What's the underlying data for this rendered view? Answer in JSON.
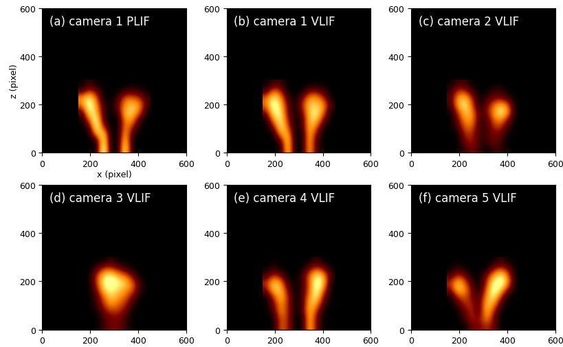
{
  "chart_data": [
    {
      "type": "heatmap",
      "title": "(a) camera 1 PLIF",
      "x_label": "x (pixel)",
      "y_label": "z (pixel)",
      "xlim": [
        0,
        600
      ],
      "ylim": [
        0,
        600
      ],
      "xticks": [
        0,
        200,
        400,
        600
      ],
      "yticks": [
        0,
        200,
        400,
        600
      ],
      "cells_x": [
        150,
        450
      ],
      "cells_z": [
        0,
        300
      ],
      "color_range": [
        0,
        9
      ],
      "cells": [
        [
          0,
          0,
          0,
          9,
          0,
          0,
          8,
          0,
          0,
          0
        ],
        [
          0,
          0,
          0,
          8,
          0,
          0,
          7,
          0,
          0,
          0
        ],
        [
          0,
          0,
          5,
          7,
          0,
          0,
          6,
          1,
          0,
          0
        ],
        [
          0,
          1,
          8,
          3,
          0,
          0,
          5,
          3,
          0,
          0
        ],
        [
          0,
          4,
          8,
          1,
          0,
          0,
          5,
          5,
          1,
          0
        ],
        [
          1,
          7,
          6,
          1,
          0,
          1,
          6,
          6,
          4,
          0
        ],
        [
          4,
          8,
          5,
          1,
          0,
          2,
          5,
          6,
          5,
          1
        ],
        [
          5,
          7,
          4,
          0,
          0,
          1,
          4,
          4,
          3,
          1
        ],
        [
          1,
          3,
          2,
          0,
          0,
          0,
          1,
          1,
          1,
          0
        ],
        [
          0,
          1,
          0,
          0,
          0,
          0,
          0,
          0,
          0,
          0
        ]
      ]
    },
    {
      "type": "heatmap",
      "title": "(b) camera 1 VLIF",
      "xlim": [
        0,
        600
      ],
      "ylim": [
        0,
        600
      ],
      "xticks": [
        0,
        200,
        400,
        600
      ],
      "yticks": [
        0,
        200,
        400,
        600
      ],
      "cells_x": [
        150,
        450
      ],
      "cells_z": [
        0,
        300
      ],
      "color_range": [
        0,
        9
      ],
      "cells": [
        [
          0,
          0,
          0,
          7,
          0,
          0,
          6,
          1,
          0,
          0
        ],
        [
          0,
          0,
          1,
          7,
          0,
          0,
          6,
          1,
          0,
          0
        ],
        [
          0,
          0,
          5,
          6,
          0,
          0,
          6,
          2,
          0,
          0
        ],
        [
          0,
          2,
          7,
          4,
          0,
          1,
          6,
          4,
          0,
          0
        ],
        [
          0,
          5,
          7,
          3,
          0,
          1,
          6,
          6,
          2,
          0
        ],
        [
          2,
          7,
          7,
          2,
          0,
          2,
          6,
          7,
          4,
          0
        ],
        [
          4,
          8,
          6,
          2,
          0,
          3,
          6,
          6,
          5,
          1
        ],
        [
          4,
          7,
          5,
          1,
          0,
          2,
          5,
          5,
          3,
          0
        ],
        [
          1,
          4,
          3,
          0,
          0,
          0,
          2,
          2,
          1,
          0
        ],
        [
          0,
          1,
          1,
          0,
          0,
          0,
          0,
          0,
          0,
          0
        ]
      ]
    },
    {
      "type": "heatmap",
      "title": "(c) camera 2 VLIF",
      "xlim": [
        0,
        600
      ],
      "ylim": [
        0,
        600
      ],
      "xticks": [
        0,
        200,
        400,
        600
      ],
      "yticks": [
        0,
        200,
        400,
        600
      ],
      "cells_x": [
        150,
        450
      ],
      "cells_z": [
        0,
        300
      ],
      "color_range": [
        0,
        9
      ],
      "cells": [
        [
          0,
          0,
          1,
          2,
          1,
          0,
          1,
          1,
          0,
          0
        ],
        [
          0,
          0,
          2,
          3,
          1,
          1,
          2,
          1,
          0,
          0
        ],
        [
          0,
          0,
          3,
          3,
          1,
          1,
          2,
          2,
          0,
          0
        ],
        [
          0,
          1,
          4,
          4,
          1,
          1,
          3,
          3,
          1,
          0
        ],
        [
          0,
          2,
          5,
          5,
          1,
          1,
          4,
          5,
          2,
          0
        ],
        [
          0,
          3,
          6,
          5,
          1,
          2,
          5,
          7,
          5,
          0
        ],
        [
          1,
          5,
          7,
          4,
          0,
          2,
          4,
          6,
          4,
          0
        ],
        [
          1,
          5,
          6,
          3,
          0,
          1,
          2,
          2,
          1,
          0
        ],
        [
          1,
          3,
          3,
          1,
          0,
          0,
          1,
          1,
          0,
          0
        ],
        [
          0,
          1,
          1,
          0,
          0,
          0,
          0,
          0,
          0,
          0
        ]
      ]
    },
    {
      "type": "heatmap",
      "title": "(d) camera 3 VLIF",
      "xlim": [
        0,
        600
      ],
      "ylim": [
        0,
        600
      ],
      "xticks": [
        0,
        200,
        400,
        600
      ],
      "yticks": [
        0,
        200,
        400,
        600
      ],
      "cells_x": [
        150,
        450
      ],
      "cells_z": [
        0,
        300
      ],
      "color_range": [
        0,
        9
      ],
      "cells": [
        [
          0,
          0,
          0,
          1,
          2,
          2,
          1,
          0,
          0,
          0
        ],
        [
          0,
          0,
          0,
          1,
          2,
          2,
          1,
          0,
          0,
          0
        ],
        [
          0,
          0,
          0,
          2,
          3,
          3,
          2,
          0,
          0,
          0
        ],
        [
          0,
          0,
          1,
          3,
          5,
          4,
          3,
          1,
          0,
          0
        ],
        [
          0,
          0,
          1,
          4,
          6,
          5,
          4,
          2,
          0,
          0
        ],
        [
          0,
          0,
          2,
          6,
          7,
          6,
          5,
          4,
          1,
          0
        ],
        [
          0,
          0,
          3,
          7,
          8,
          7,
          6,
          4,
          1,
          0
        ],
        [
          0,
          0,
          3,
          6,
          7,
          5,
          4,
          2,
          0,
          0
        ],
        [
          0,
          0,
          1,
          3,
          3,
          2,
          1,
          0,
          0,
          0
        ],
        [
          0,
          0,
          0,
          0,
          1,
          0,
          0,
          0,
          0,
          0
        ]
      ]
    },
    {
      "type": "heatmap",
      "title": "(e) camera 4 VLIF",
      "xlim": [
        0,
        600
      ],
      "ylim": [
        0,
        600
      ],
      "xticks": [
        0,
        200,
        400,
        600
      ],
      "yticks": [
        0,
        200,
        400,
        600
      ],
      "cells_x": [
        150,
        450
      ],
      "cells_z": [
        0,
        300
      ],
      "color_range": [
        0,
        9
      ],
      "cells": [
        [
          0,
          0,
          4,
          3,
          0,
          0,
          6,
          2,
          0,
          0
        ],
        [
          0,
          0,
          4,
          3,
          0,
          0,
          6,
          2,
          0,
          0
        ],
        [
          0,
          1,
          5,
          3,
          0,
          1,
          6,
          3,
          0,
          0
        ],
        [
          0,
          2,
          5,
          3,
          0,
          1,
          6,
          5,
          1,
          0
        ],
        [
          0,
          3,
          6,
          3,
          0,
          1,
          5,
          7,
          2,
          0
        ],
        [
          2,
          6,
          6,
          2,
          0,
          1,
          4,
          8,
          4,
          0
        ],
        [
          3,
          6,
          5,
          1,
          0,
          1,
          4,
          8,
          6,
          0
        ],
        [
          1,
          3,
          2,
          0,
          0,
          1,
          4,
          7,
          5,
          1
        ],
        [
          0,
          1,
          0,
          0,
          0,
          0,
          2,
          3,
          2,
          0
        ],
        [
          0,
          0,
          0,
          0,
          0,
          0,
          0,
          1,
          0,
          0
        ]
      ]
    },
    {
      "type": "heatmap",
      "title": "(f) camera 5 VLIF",
      "xlim": [
        0,
        600
      ],
      "ylim": [
        0,
        600
      ],
      "xticks": [
        0,
        200,
        400,
        600
      ],
      "yticks": [
        0,
        200,
        400,
        600
      ],
      "cells_x": [
        150,
        450
      ],
      "cells_z": [
        0,
        300
      ],
      "color_range": [
        0,
        9
      ],
      "cells": [
        [
          0,
          0,
          0,
          2,
          2,
          3,
          2,
          0,
          0,
          0
        ],
        [
          0,
          0,
          1,
          3,
          2,
          5,
          2,
          0,
          0,
          0
        ],
        [
          0,
          0,
          2,
          3,
          1,
          6,
          3,
          0,
          0,
          0
        ],
        [
          0,
          1,
          3,
          3,
          1,
          6,
          5,
          1,
          0,
          0
        ],
        [
          0,
          3,
          4,
          2,
          1,
          5,
          7,
          3,
          0,
          0
        ],
        [
          2,
          6,
          5,
          2,
          0,
          4,
          8,
          6,
          2,
          0
        ],
        [
          3,
          6,
          4,
          1,
          0,
          3,
          7,
          8,
          5,
          0
        ],
        [
          1,
          3,
          2,
          0,
          0,
          2,
          5,
          7,
          4,
          0
        ],
        [
          0,
          1,
          0,
          0,
          0,
          0,
          2,
          3,
          2,
          0
        ],
        [
          0,
          0,
          0,
          0,
          0,
          0,
          0,
          1,
          0,
          0
        ]
      ]
    }
  ]
}
